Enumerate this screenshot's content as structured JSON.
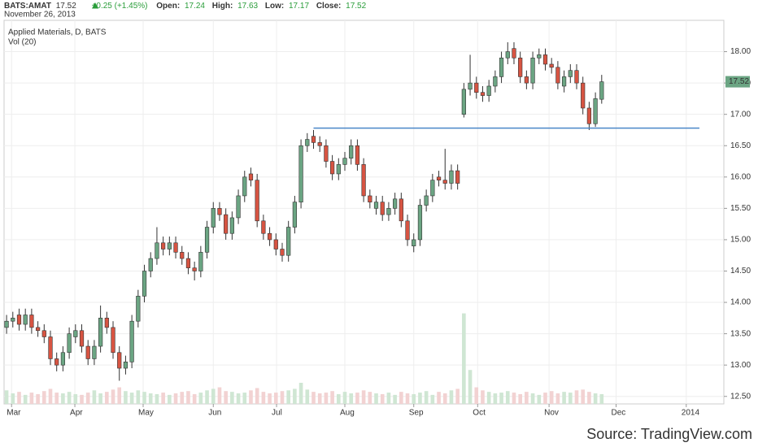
{
  "header": {
    "symbol": "BATS:AMAT",
    "last": 17.52,
    "change": "+0.25 (+1.45%)",
    "open_label": "Open:",
    "open": 17.24,
    "high_label": "High:",
    "high": 17.63,
    "low_label": "Low:",
    "low": 17.17,
    "close_label": "Close:",
    "close": 17.52,
    "date": "November 26, 2013"
  },
  "chart_data": {
    "type": "candlestick",
    "title": "Applied Materials, D, BATS",
    "volume_label": "Vol (20)",
    "open": [
      13.6,
      13.7,
      13.8,
      13.65,
      13.8,
      13.6,
      13.55,
      13.45,
      13.1,
      13.0,
      13.2,
      13.45,
      13.55,
      13.3,
      13.1,
      13.3,
      13.75,
      13.6,
      13.2,
      12.95,
      13.05,
      13.7,
      14.1,
      14.5,
      14.7,
      14.95,
      14.85,
      14.95,
      14.8,
      14.7,
      14.55,
      14.5,
      14.8,
      15.2,
      15.5,
      15.4,
      15.1,
      15.35,
      15.7,
      16.05,
      15.95,
      15.3,
      15.1,
      15.0,
      14.85,
      14.75,
      15.2,
      15.6,
      16.5,
      16.65,
      16.55,
      16.5,
      16.25,
      16.05,
      16.2,
      16.3,
      16.5,
      16.2,
      15.7,
      15.5,
      15.6,
      15.4,
      15.5,
      15.65,
      15.3,
      14.9,
      15.0,
      15.55,
      15.7,
      16.0,
      15.95,
      15.9,
      16.1,
      17.0,
      17.4,
      17.5,
      17.35,
      17.3,
      17.45,
      17.6,
      17.9,
      18.05,
      17.9,
      17.6,
      17.5,
      17.9,
      17.95,
      17.8,
      17.75,
      17.45,
      17.6,
      17.7,
      17.5,
      17.1,
      16.85,
      17.24
    ],
    "high": [
      13.8,
      13.85,
      13.9,
      13.9,
      13.9,
      13.7,
      13.65,
      13.55,
      13.2,
      13.3,
      13.6,
      13.65,
      13.65,
      13.4,
      13.4,
      13.95,
      13.85,
      13.7,
      13.3,
      13.15,
      13.8,
      14.2,
      14.6,
      14.8,
      15.2,
      15.05,
      15.05,
      15.05,
      14.9,
      14.8,
      14.65,
      14.9,
      15.3,
      15.6,
      15.6,
      15.5,
      15.45,
      15.8,
      16.1,
      16.15,
      16.05,
      15.4,
      15.2,
      15.1,
      14.95,
      15.3,
      15.7,
      16.6,
      16.7,
      16.75,
      16.65,
      16.6,
      16.35,
      16.3,
      16.4,
      16.6,
      16.6,
      16.3,
      15.8,
      15.7,
      15.7,
      15.6,
      15.75,
      15.75,
      15.4,
      15.1,
      15.65,
      15.8,
      16.05,
      16.1,
      16.45,
      16.2,
      16.2,
      17.5,
      17.95,
      17.6,
      17.45,
      17.55,
      17.7,
      18.0,
      18.15,
      18.15,
      18.0,
      17.7,
      18.0,
      18.05,
      18.05,
      17.9,
      17.85,
      17.7,
      17.8,
      17.8,
      17.6,
      17.2,
      17.35,
      17.63
    ],
    "low": [
      13.5,
      13.6,
      13.55,
      13.55,
      13.5,
      13.45,
      13.35,
      13.0,
      12.9,
      12.9,
      13.1,
      13.35,
      13.2,
      13.0,
      13.0,
      13.2,
      13.5,
      13.1,
      12.75,
      12.85,
      12.95,
      13.6,
      14.0,
      14.4,
      14.6,
      14.75,
      14.75,
      14.7,
      14.6,
      14.45,
      14.35,
      14.4,
      14.7,
      15.1,
      15.3,
      15.0,
      15.0,
      15.25,
      15.6,
      15.85,
      15.2,
      15.0,
      14.9,
      14.75,
      14.65,
      14.65,
      15.1,
      15.5,
      16.4,
      16.45,
      16.4,
      16.15,
      15.95,
      15.95,
      16.1,
      16.2,
      16.1,
      15.6,
      15.5,
      15.4,
      15.3,
      15.3,
      15.4,
      15.2,
      14.9,
      14.8,
      14.9,
      15.45,
      15.6,
      15.85,
      15.8,
      15.8,
      15.8,
      16.95,
      17.3,
      17.25,
      17.2,
      17.2,
      17.35,
      17.5,
      17.8,
      17.8,
      17.5,
      17.4,
      17.4,
      17.8,
      17.7,
      17.65,
      17.4,
      17.35,
      17.5,
      17.4,
      17.0,
      16.75,
      16.8,
      17.17
    ],
    "close": [
      13.7,
      13.75,
      13.65,
      13.8,
      13.6,
      13.55,
      13.45,
      13.1,
      13.0,
      13.2,
      13.5,
      13.55,
      13.3,
      13.1,
      13.3,
      13.75,
      13.6,
      13.2,
      12.95,
      13.05,
      13.7,
      14.1,
      14.5,
      14.7,
      14.95,
      14.85,
      14.95,
      14.8,
      14.7,
      14.55,
      14.5,
      14.8,
      15.2,
      15.5,
      15.4,
      15.1,
      15.35,
      15.7,
      16.0,
      15.95,
      15.3,
      15.1,
      15.0,
      14.85,
      14.75,
      15.2,
      15.6,
      16.5,
      16.6,
      16.55,
      16.5,
      16.25,
      16.05,
      16.2,
      16.3,
      16.5,
      16.2,
      15.7,
      15.6,
      15.6,
      15.4,
      15.5,
      15.65,
      15.3,
      15.0,
      15.0,
      15.55,
      15.7,
      15.95,
      15.95,
      15.9,
      16.1,
      15.9,
      17.4,
      17.5,
      17.35,
      17.3,
      17.45,
      17.6,
      17.9,
      18.0,
      17.9,
      17.6,
      17.5,
      17.9,
      17.95,
      17.8,
      17.75,
      17.5,
      17.6,
      17.7,
      17.5,
      17.1,
      16.85,
      17.25,
      17.52
    ],
    "volume": [
      18,
      14,
      16,
      12,
      15,
      13,
      17,
      20,
      15,
      14,
      16,
      13,
      12,
      15,
      18,
      14,
      16,
      19,
      22,
      17,
      15,
      18,
      16,
      14,
      13,
      15,
      12,
      14,
      16,
      17,
      13,
      15,
      18,
      20,
      22,
      17,
      16,
      14,
      15,
      18,
      21,
      16,
      14,
      15,
      17,
      18,
      20,
      28,
      19,
      16,
      14,
      15,
      17,
      13,
      16,
      14,
      15,
      18,
      16,
      14,
      13,
      15,
      12,
      16,
      14,
      13,
      15,
      17,
      12,
      16,
      14,
      18,
      20,
      120,
      45,
      22,
      18,
      16,
      14,
      15,
      17,
      15,
      13,
      16,
      14,
      12,
      15,
      17,
      14,
      16,
      15,
      18,
      19,
      16,
      14,
      13
    ],
    "up_color": "#6ba583",
    "down_color": "#d75442",
    "up_volume_color": "#cfe6d3",
    "down_volume_color": "#f2d2d2",
    "ylim": [
      12.38,
      18.5
    ],
    "yticks": [
      {
        "value": 12.5,
        "label": "12.50"
      },
      {
        "value": 13,
        "label": "13.00"
      },
      {
        "value": 13.5,
        "label": "13.50"
      },
      {
        "value": 14,
        "label": "14.00"
      },
      {
        "value": 14.5,
        "label": "14.50"
      },
      {
        "value": 15,
        "label": "15.00"
      },
      {
        "value": 15.5,
        "label": "15.50"
      },
      {
        "value": 16,
        "label": "16.00"
      },
      {
        "value": 16.5,
        "label": "16.50"
      },
      {
        "value": 17,
        "label": "17.00"
      },
      {
        "value": 17.5,
        "label": "17.50"
      },
      {
        "value": 18,
        "label": "18.00"
      }
    ],
    "xlim": [
      -0.4,
      114.5
    ],
    "xticks": [
      {
        "value": 0.8,
        "label": "Mar"
      },
      {
        "value": 10.9,
        "label": "Apr"
      },
      {
        "value": 21.8,
        "label": "May"
      },
      {
        "value": 33,
        "label": "Jun"
      },
      {
        "value": 43.1,
        "label": "Jul"
      },
      {
        "value": 54,
        "label": "Aug"
      },
      {
        "value": 65,
        "label": "Sep"
      },
      {
        "value": 75.2,
        "label": "Oct"
      },
      {
        "value": 86.6,
        "label": "Nov"
      },
      {
        "value": 97.3,
        "label": "Dec"
      },
      {
        "value": 108.5,
        "label": "2014"
      }
    ],
    "vlim": [
      0,
      140
    ],
    "grid": true,
    "hline": {
      "value": 16.78,
      "x": [
        49,
        110.6
      ],
      "color": "#4a86c8"
    },
    "price_tag": {
      "value": 17.52,
      "label": "17.52",
      "color": "#6ba583"
    },
    "source": "Source: TradingView.com"
  }
}
